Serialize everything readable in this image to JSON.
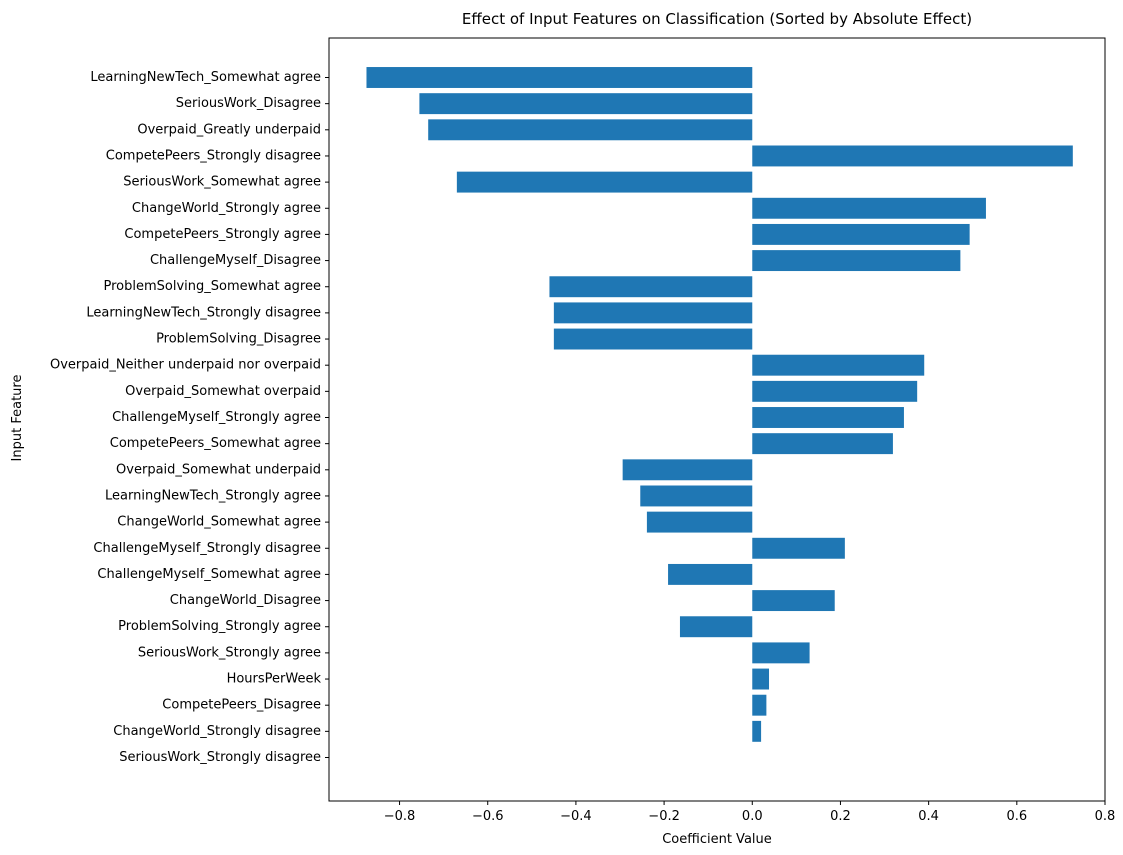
{
  "chart_data": {
    "type": "bar",
    "orientation": "horizontal",
    "title": "Effect of Input Features on Classification (Sorted by Absolute Effect)",
    "xlabel": "Coefficient Value",
    "ylabel": "Input Feature",
    "xlim": [
      -0.96,
      0.8
    ],
    "xticks": [
      -0.8,
      -0.6,
      -0.4,
      -0.2,
      0.0,
      0.2,
      0.4,
      0.6,
      0.8
    ],
    "xtick_labels": [
      "−0.8",
      "−0.6",
      "−0.4",
      "−0.2",
      "0.0",
      "0.2",
      "0.4",
      "0.6",
      "0.8"
    ],
    "grid": false,
    "bar_color": "#1f77b4",
    "categories": [
      "LearningNewTech_Somewhat agree",
      "SeriousWork_Disagree",
      "Overpaid_Greatly underpaid",
      "CompetePeers_Strongly disagree",
      "SeriousWork_Somewhat agree",
      "ChangeWorld_Strongly agree",
      "CompetePeers_Strongly agree",
      "ChallengeMyself_Disagree",
      "ProblemSolving_Somewhat agree",
      "LearningNewTech_Strongly disagree",
      "ProblemSolving_Disagree",
      "Overpaid_Neither underpaid nor overpaid",
      "Overpaid_Somewhat overpaid",
      "ChallengeMyself_Strongly agree",
      "CompetePeers_Somewhat agree",
      "Overpaid_Somewhat underpaid",
      "LearningNewTech_Strongly agree",
      "ChangeWorld_Somewhat agree",
      "ChallengeMyself_Strongly disagree",
      "ChallengeMyself_Somewhat agree",
      "ChangeWorld_Disagree",
      "ProblemSolving_Strongly agree",
      "SeriousWork_Strongly agree",
      "HoursPerWeek",
      "CompetePeers_Disagree",
      "ChangeWorld_Strongly disagree",
      "SeriousWork_Strongly disagree"
    ],
    "values": [
      -0.875,
      -0.755,
      -0.735,
      0.727,
      -0.67,
      0.53,
      0.493,
      0.472,
      -0.46,
      -0.45,
      -0.45,
      0.39,
      0.374,
      0.344,
      0.319,
      -0.294,
      -0.254,
      -0.239,
      0.21,
      -0.191,
      0.187,
      -0.164,
      0.13,
      0.038,
      0.032,
      0.02,
      0.0
    ]
  }
}
